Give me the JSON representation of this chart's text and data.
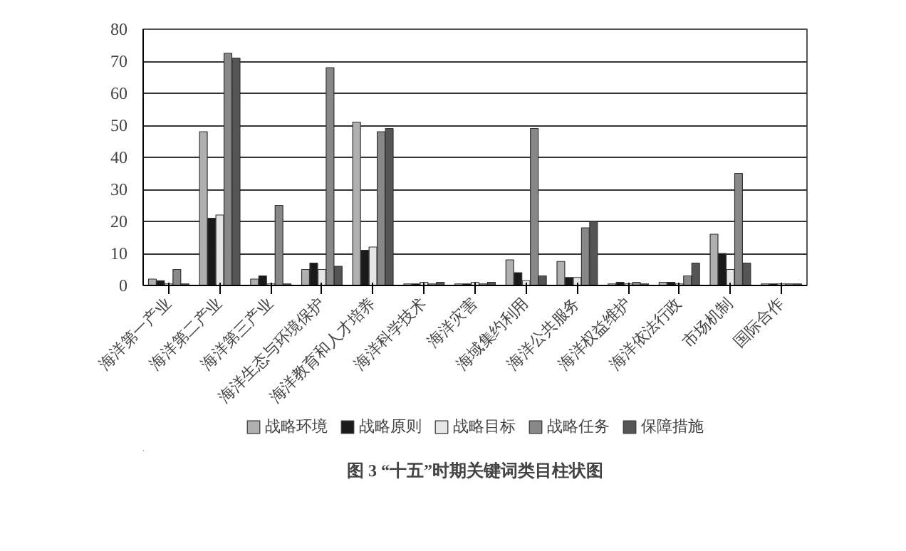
{
  "chart_data": {
    "type": "bar",
    "title": "图 3 “十五”时期关键词类目柱状图",
    "categories": [
      "海洋第一产业",
      "海洋第二产业",
      "海洋第三产业",
      "海洋生态与环境保护",
      "海洋教育和人才培养",
      "海洋科学技术",
      "海洋灾害",
      "海域集约利用",
      "海洋公共服务",
      "海洋权益维护",
      "海洋依法行政",
      "市场机制",
      "国际合作"
    ],
    "series": [
      {
        "name": "战略环境",
        "color": "#b0b0b0",
        "values": [
          2,
          48,
          2,
          5,
          51,
          0.5,
          0.5,
          8,
          7.5,
          0.5,
          1,
          16,
          0.5
        ]
      },
      {
        "name": "战略原则",
        "color": "#1a1a1a",
        "values": [
          1.5,
          21,
          3,
          7,
          11,
          0.5,
          0.5,
          4,
          2.5,
          1,
          1,
          10,
          0.5
        ]
      },
      {
        "name": "战略目标",
        "color": "#e6e6e6",
        "values": [
          0.5,
          22,
          0.5,
          5,
          12,
          1,
          1,
          1.5,
          2.5,
          0.5,
          0.5,
          5,
          0.5
        ]
      },
      {
        "name": "战略任务",
        "color": "#888888",
        "values": [
          5,
          72.5,
          25,
          68,
          48,
          0.5,
          0.5,
          49,
          18,
          1,
          3,
          35,
          0.5
        ]
      },
      {
        "name": "保障措施",
        "color": "#555555",
        "values": [
          0.5,
          71,
          0.5,
          6,
          49,
          1,
          1,
          3,
          20,
          0.5,
          7,
          7,
          0.5
        ]
      }
    ],
    "ylim": [
      0,
      80
    ],
    "yticks": [
      0,
      10,
      20,
      30,
      40,
      50,
      60,
      70,
      80
    ],
    "grid": "y",
    "legend": "bottom"
  }
}
